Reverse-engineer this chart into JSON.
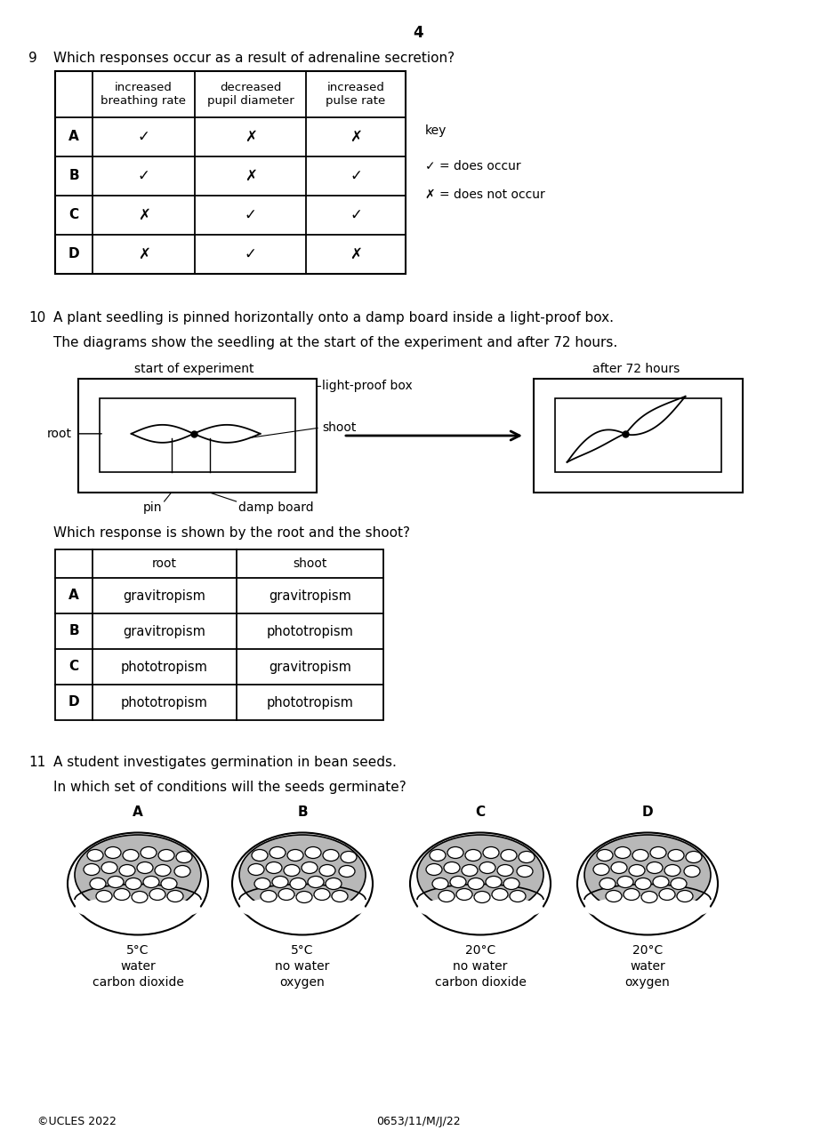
{
  "page_number": "4",
  "q9": {
    "number": "9",
    "text": "Which responses occur as a result of adrenaline secretion?",
    "table": {
      "col_headers": [
        "",
        "increased\nbreathing rate",
        "decreased\npupil diameter",
        "increased\npulse rate"
      ],
      "rows": [
        [
          "A",
          "✓",
          "✗",
          "✗"
        ],
        [
          "B",
          "✓",
          "✗",
          "✓"
        ],
        [
          "C",
          "✗",
          "✓",
          "✓"
        ],
        [
          "D",
          "✗",
          "✓",
          "✗"
        ]
      ]
    },
    "key_text": [
      "key",
      "✓ = does occur",
      "✗ = does not occur"
    ]
  },
  "q10": {
    "number": "10",
    "text": "A plant seedling is pinned horizontally onto a damp board inside a light-proof box.",
    "subtext": "The diagrams show the seedling at the start of the experiment and after 72 hours.",
    "labels": {
      "start": "start of experiment",
      "after": "after 72 hours",
      "light_proof": "light-proof box",
      "root": "root",
      "pin": "pin",
      "damp_board": "damp board",
      "shoot": "shoot"
    },
    "question2": "Which response is shown by the root and the shoot?",
    "table": {
      "col_headers": [
        "",
        "root",
        "shoot"
      ],
      "rows": [
        [
          "A",
          "gravitropism",
          "gravitropism"
        ],
        [
          "B",
          "gravitropism",
          "phototropism"
        ],
        [
          "C",
          "phototropism",
          "gravitropism"
        ],
        [
          "D",
          "phototropism",
          "phototropism"
        ]
      ]
    }
  },
  "q11": {
    "number": "11",
    "text": "A student investigates germination in bean seeds.",
    "subtext": "In which set of conditions will the seeds germinate?",
    "options": [
      {
        "label": "A",
        "temp": "5°C",
        "line2": "water",
        "line3": "carbon dioxide"
      },
      {
        "label": "B",
        "temp": "5°C",
        "line2": "no water",
        "line3": "oxygen"
      },
      {
        "label": "C",
        "temp": "20°C",
        "line2": "no water",
        "line3": "carbon dioxide"
      },
      {
        "label": "D",
        "temp": "20°C",
        "line2": "water",
        "line3": "oxygen"
      }
    ]
  },
  "footer_left": "©UCLES 2022",
  "footer_center": "0653/11/M/J/22"
}
